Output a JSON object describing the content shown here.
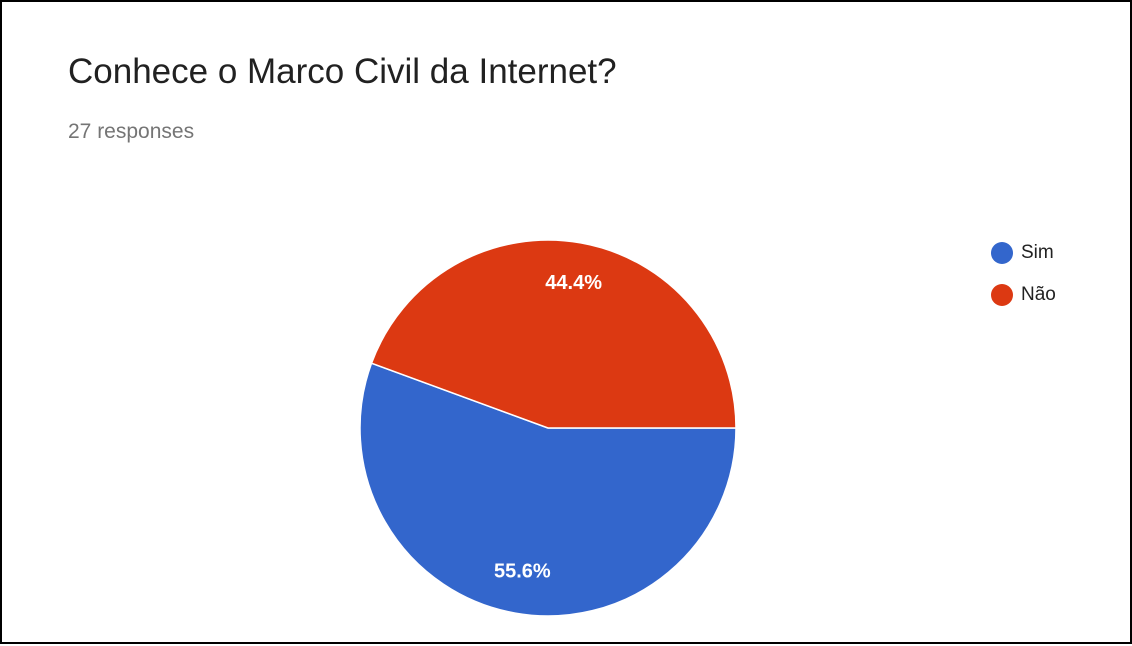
{
  "header": {
    "title": "Conhece o Marco Civil da Internet?",
    "responses": "27 responses"
  },
  "chart_data": {
    "type": "pie",
    "title": "Conhece o Marco Civil da Internet?",
    "subtitle": "27 responses",
    "legend_position": "right",
    "slices": [
      {
        "label": "Sim",
        "value": 55.6,
        "display": "55.6%",
        "color": "#3366cc"
      },
      {
        "label": "Não",
        "value": 44.4,
        "display": "44.4%",
        "color": "#dc3912"
      }
    ]
  }
}
